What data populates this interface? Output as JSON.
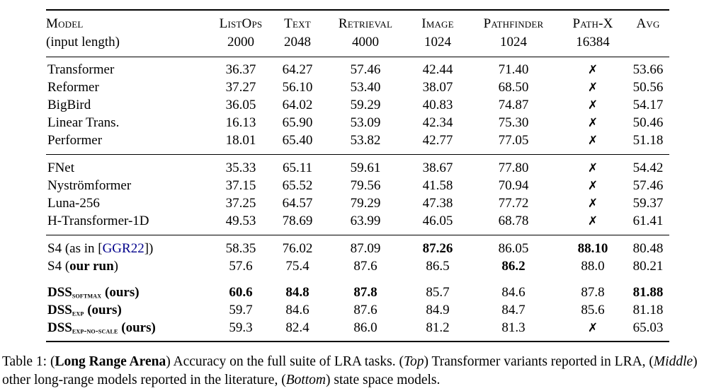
{
  "table": {
    "header": {
      "col1_title": "Model",
      "col1_subtitle": "(input length)",
      "columns": [
        {
          "label": "ListOps",
          "length": "2000"
        },
        {
          "label": "Text",
          "length": "2048"
        },
        {
          "label": "Retrieval",
          "length": "4000"
        },
        {
          "label": "Image",
          "length": "1024"
        },
        {
          "label": "Pathfinder",
          "length": "1024"
        },
        {
          "label": "Path-X",
          "length": "16384"
        },
        {
          "label": "Avg",
          "length": ""
        }
      ]
    },
    "fail_symbol": "✗",
    "groups": [
      {
        "name": "top-transformer-variants",
        "rows": [
          {
            "id": "transformer",
            "model_parts": [
              {
                "text": "Transformer"
              }
            ],
            "cells": [
              {
                "text": "36.37"
              },
              {
                "text": "64.27"
              },
              {
                "text": "57.46"
              },
              {
                "text": "42.44"
              },
              {
                "text": "71.40"
              },
              {
                "text": "✗",
                "fail": true
              },
              {
                "text": "53.66"
              }
            ]
          },
          {
            "id": "reformer",
            "model_parts": [
              {
                "text": "Reformer"
              }
            ],
            "cells": [
              {
                "text": "37.27"
              },
              {
                "text": "56.10"
              },
              {
                "text": "53.40"
              },
              {
                "text": "38.07"
              },
              {
                "text": "68.50"
              },
              {
                "text": "✗",
                "fail": true
              },
              {
                "text": "50.56"
              }
            ]
          },
          {
            "id": "bigbird",
            "model_parts": [
              {
                "text": "BigBird"
              }
            ],
            "cells": [
              {
                "text": "36.05"
              },
              {
                "text": "64.02"
              },
              {
                "text": "59.29"
              },
              {
                "text": "40.83"
              },
              {
                "text": "74.87"
              },
              {
                "text": "✗",
                "fail": true
              },
              {
                "text": "54.17"
              }
            ]
          },
          {
            "id": "linear-trans",
            "model_parts": [
              {
                "text": "Linear Trans."
              }
            ],
            "cells": [
              {
                "text": "16.13"
              },
              {
                "text": "65.90"
              },
              {
                "text": "53.09"
              },
              {
                "text": "42.34"
              },
              {
                "text": "75.30"
              },
              {
                "text": "✗",
                "fail": true
              },
              {
                "text": "50.46"
              }
            ]
          },
          {
            "id": "performer",
            "model_parts": [
              {
                "text": "Performer"
              }
            ],
            "cells": [
              {
                "text": "18.01"
              },
              {
                "text": "65.40"
              },
              {
                "text": "53.82"
              },
              {
                "text": "42.77"
              },
              {
                "text": "77.05"
              },
              {
                "text": "✗",
                "fail": true
              },
              {
                "text": "51.18"
              }
            ]
          }
        ]
      },
      {
        "name": "middle-long-range-models",
        "rows": [
          {
            "id": "fnet",
            "model_parts": [
              {
                "text": "FNet"
              }
            ],
            "cells": [
              {
                "text": "35.33"
              },
              {
                "text": "65.11"
              },
              {
                "text": "59.61"
              },
              {
                "text": "38.67"
              },
              {
                "text": "77.80"
              },
              {
                "text": "✗",
                "fail": true
              },
              {
                "text": "54.42"
              }
            ]
          },
          {
            "id": "nystromformer",
            "model_parts": [
              {
                "text": "Nyströmformer"
              }
            ],
            "cells": [
              {
                "text": "37.15"
              },
              {
                "text": "65.52"
              },
              {
                "text": "79.56"
              },
              {
                "text": "41.58"
              },
              {
                "text": "70.94"
              },
              {
                "text": "✗",
                "fail": true
              },
              {
                "text": "57.46"
              }
            ]
          },
          {
            "id": "luna-256",
            "model_parts": [
              {
                "text": "Luna-256"
              }
            ],
            "cells": [
              {
                "text": "37.25"
              },
              {
                "text": "64.57"
              },
              {
                "text": "79.29"
              },
              {
                "text": "47.38"
              },
              {
                "text": "77.72"
              },
              {
                "text": "✗",
                "fail": true
              },
              {
                "text": "59.37"
              }
            ]
          },
          {
            "id": "h-transformer-1d",
            "model_parts": [
              {
                "text": "H-Transformer-1D"
              }
            ],
            "cells": [
              {
                "text": "49.53"
              },
              {
                "text": "78.69"
              },
              {
                "text": "63.99"
              },
              {
                "text": "46.05"
              },
              {
                "text": "68.78"
              },
              {
                "text": "✗",
                "fail": true
              },
              {
                "text": "61.41"
              }
            ]
          }
        ]
      },
      {
        "name": "bottom-state-space-models",
        "rows": [
          {
            "id": "s4-ggr22",
            "model_parts": [
              {
                "text": "S4 (as in ["
              },
              {
                "text": "GGR22",
                "link": true
              },
              {
                "text": "])"
              }
            ],
            "cells": [
              {
                "text": "58.35"
              },
              {
                "text": "76.02"
              },
              {
                "text": "87.09"
              },
              {
                "text": "87.26",
                "bold": true
              },
              {
                "text": "86.05"
              },
              {
                "text": "88.10",
                "bold": true
              },
              {
                "text": "80.48"
              }
            ]
          },
          {
            "id": "s4-our-run",
            "model_parts": [
              {
                "text": "S4 ("
              },
              {
                "text": "our run",
                "bold": true
              },
              {
                "text": ")"
              }
            ],
            "cells": [
              {
                "text": "57.6"
              },
              {
                "text": "75.4"
              },
              {
                "text": "87.6"
              },
              {
                "text": "86.5"
              },
              {
                "text": "86.2",
                "bold": true
              },
              {
                "text": "88.0"
              },
              {
                "text": "80.21"
              }
            ]
          },
          {
            "id": "dss-softmax",
            "gap_before": true,
            "model_parts": [
              {
                "text": "DSS",
                "bold": true
              },
              {
                "text": "softmax",
                "bold": true,
                "sub": true
              },
              {
                "text": " (ours)",
                "bold": true
              }
            ],
            "cells": [
              {
                "text": "60.6",
                "bold": true
              },
              {
                "text": "84.8",
                "bold": true
              },
              {
                "text": "87.8",
                "bold": true
              },
              {
                "text": "85.7"
              },
              {
                "text": "84.6"
              },
              {
                "text": "87.8"
              },
              {
                "text": "81.88",
                "bold": true
              }
            ]
          },
          {
            "id": "dss-exp",
            "model_parts": [
              {
                "text": "DSS",
                "bold": true
              },
              {
                "text": "exp",
                "bold": true,
                "sub": true
              },
              {
                "text": " (ours)",
                "bold": true
              }
            ],
            "cells": [
              {
                "text": "59.7"
              },
              {
                "text": "84.6"
              },
              {
                "text": "87.6"
              },
              {
                "text": "84.9"
              },
              {
                "text": "84.7"
              },
              {
                "text": "85.6"
              },
              {
                "text": "81.18"
              }
            ]
          },
          {
            "id": "dss-exp-no-scale",
            "model_parts": [
              {
                "text": "DSS",
                "bold": true
              },
              {
                "text": "exp-no-scale",
                "bold": true,
                "sub": true
              },
              {
                "text": " (ours)",
                "bold": true
              }
            ],
            "cells": [
              {
                "text": "59.3"
              },
              {
                "text": "82.4"
              },
              {
                "text": "86.0"
              },
              {
                "text": "81.2"
              },
              {
                "text": "81.3"
              },
              {
                "text": "✗",
                "fail": true
              },
              {
                "text": "65.03"
              }
            ]
          }
        ]
      }
    ]
  },
  "caption": {
    "parts": [
      {
        "text": "Table 1: ("
      },
      {
        "text": "Long Range Arena",
        "bold": true
      },
      {
        "text": ") Accuracy on the full suite of LRA tasks. ("
      },
      {
        "text": "Top",
        "italic": true
      },
      {
        "text": ") Transformer variants reported in LRA, ("
      },
      {
        "text": "Middle",
        "italic": true
      },
      {
        "text": ") other long-range models reported in the literature, ("
      },
      {
        "text": "Bottom",
        "italic": true
      },
      {
        "text": ") state space models."
      }
    ]
  },
  "colors": {
    "text": "#000000",
    "background": "#ffffff",
    "citation_link": "#00008B"
  }
}
